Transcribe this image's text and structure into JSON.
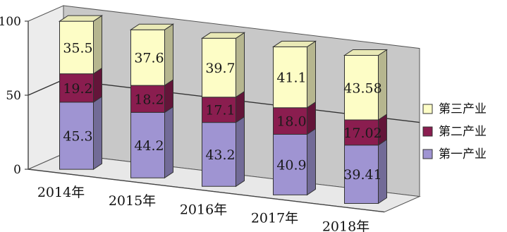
{
  "chart_data": {
    "type": "bar",
    "stacked": true,
    "three_d": true,
    "categories": [
      "2014年",
      "2015年",
      "2016年",
      "2017年",
      "2018年"
    ],
    "series": [
      {
        "name": "第一产业",
        "values": [
          45.3,
          44.2,
          43.2,
          40.9,
          39.41
        ],
        "color": "#9f94d2"
      },
      {
        "name": "第二产业",
        "values": [
          19.2,
          18.2,
          17.1,
          18.0,
          17.02
        ],
        "color": "#8a1d4f"
      },
      {
        "name": "第三产业",
        "values": [
          35.5,
          37.6,
          39.7,
          41.1,
          43.58
        ],
        "color": "#fdfdc6"
      }
    ],
    "value_labels": [
      [
        "45.3",
        "44.2",
        "43.2",
        "40.9",
        "39.41"
      ],
      [
        "19.2",
        "18.2",
        "17.1",
        "18.0",
        "17.02"
      ],
      [
        "35.5",
        "37.6",
        "39.7",
        "41.1",
        "43.58"
      ]
    ],
    "yticks": [
      "0",
      "50",
      "100"
    ],
    "ylim": [
      0,
      100
    ],
    "legend": {
      "position": "right",
      "order": [
        "第三产业",
        "第二产业",
        "第一产业"
      ]
    },
    "title": "",
    "xlabel": "",
    "ylabel": ""
  }
}
